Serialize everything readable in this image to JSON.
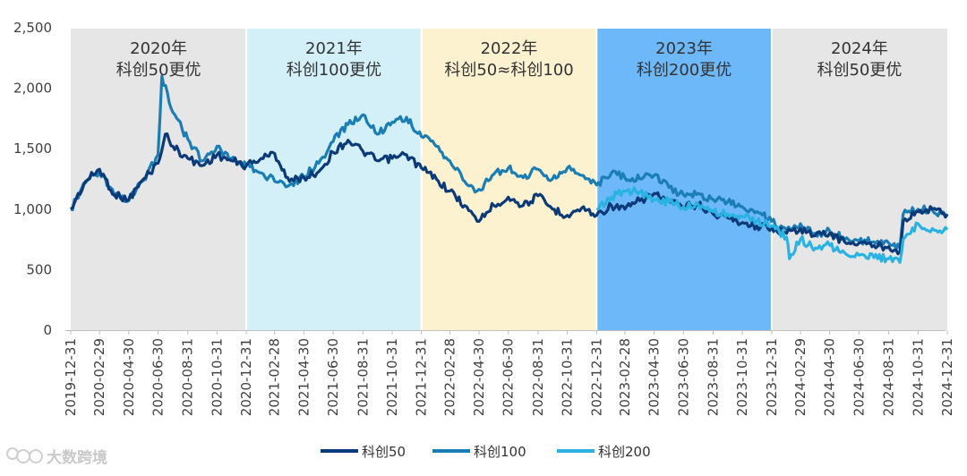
{
  "chart_data": {
    "type": "line",
    "title": "",
    "xlabel": "",
    "ylabel": "",
    "ylim": [
      0,
      2500
    ],
    "yticks": [
      0,
      500,
      1000,
      1500,
      2000,
      2500
    ],
    "ytick_labels": [
      "0",
      "500",
      "1,000",
      "1,500",
      "2,000",
      "2,500"
    ],
    "xtick_labels": [
      "2019-12-31",
      "2020-02-29",
      "2020-04-30",
      "2020-06-30",
      "2020-08-31",
      "2020-10-31",
      "2020-12-31",
      "2021-02-28",
      "2021-04-30",
      "2021-06-30",
      "2021-08-31",
      "2021-10-31",
      "2021-12-31",
      "2022-02-28",
      "2022-04-30",
      "2022-06-30",
      "2022-08-31",
      "2022-10-31",
      "2022-12-31",
      "2023-02-28",
      "2023-04-30",
      "2023-06-30",
      "2023-08-31",
      "2023-10-31",
      "2023-12-31",
      "2024-02-29",
      "2024-04-30",
      "2024-06-30",
      "2024-08-31",
      "2024-10-31",
      "2024-12-31"
    ],
    "grid": false,
    "legend_position": "bottom",
    "bands": [
      {
        "line1": "2020年",
        "line2": "科创50更优",
        "start": "2019-12-31",
        "end": "2020-12-31",
        "color": "#e6e6e6"
      },
      {
        "line1": "2021年",
        "line2": "科创100更优",
        "start": "2020-12-31",
        "end": "2021-12-31",
        "color": "#d3eff8"
      },
      {
        "line1": "2022年",
        "line2": "科创50≈科创100",
        "start": "2021-12-31",
        "end": "2022-12-31",
        "color": "#fdf2d0"
      },
      {
        "line1": "2023年",
        "line2": "科创200更优",
        "start": "2022-12-31",
        "end": "2023-12-31",
        "color": "#6cb8f8"
      },
      {
        "line1": "2024年",
        "line2": "科创50更优",
        "start": "2023-12-31",
        "end": "2024-12-31",
        "color": "#e6e6e6"
      }
    ],
    "series": [
      {
        "name": "科创50",
        "color": "#0b3a78",
        "x": [
          "2019-12-31",
          "2020-01-31",
          "2020-02-29",
          "2020-03-31",
          "2020-04-30",
          "2020-05-31",
          "2020-06-30",
          "2020-07-15",
          "2020-07-31",
          "2020-08-31",
          "2020-09-30",
          "2020-10-31",
          "2020-11-30",
          "2020-12-31",
          "2021-01-31",
          "2021-02-28",
          "2021-03-31",
          "2021-04-30",
          "2021-05-31",
          "2021-06-30",
          "2021-07-31",
          "2021-08-31",
          "2021-09-30",
          "2021-10-31",
          "2021-11-30",
          "2021-12-31",
          "2022-01-31",
          "2022-02-28",
          "2022-03-31",
          "2022-04-26",
          "2022-05-31",
          "2022-06-30",
          "2022-07-31",
          "2022-08-31",
          "2022-09-30",
          "2022-10-31",
          "2022-11-30",
          "2022-12-31",
          "2023-01-31",
          "2023-02-28",
          "2023-03-31",
          "2023-04-30",
          "2023-05-31",
          "2023-06-30",
          "2023-07-31",
          "2023-08-31",
          "2023-09-30",
          "2023-10-31",
          "2023-11-30",
          "2023-12-31",
          "2024-01-31",
          "2024-02-29",
          "2024-03-31",
          "2024-04-30",
          "2024-05-31",
          "2024-06-30",
          "2024-07-31",
          "2024-08-31",
          "2024-09-23",
          "2024-09-30",
          "2024-10-31",
          "2024-11-30",
          "2024-12-31"
        ],
        "values": [
          1000,
          1230,
          1330,
          1120,
          1080,
          1250,
          1380,
          1620,
          1520,
          1420,
          1360,
          1450,
          1400,
          1360,
          1420,
          1460,
          1230,
          1260,
          1310,
          1470,
          1570,
          1480,
          1400,
          1420,
          1450,
          1340,
          1250,
          1150,
          1030,
          900,
          1030,
          1100,
          1030,
          1110,
          1000,
          950,
          1010,
          950,
          1030,
          1000,
          1070,
          1130,
          1060,
          1020,
          1040,
          960,
          930,
          890,
          860,
          850,
          800,
          840,
          780,
          800,
          730,
          720,
          700,
          690,
          650,
          900,
          980,
          1000,
          960
        ]
      },
      {
        "name": "科创100",
        "color": "#1a7db4",
        "x": [
          "2019-12-31",
          "2020-01-31",
          "2020-02-29",
          "2020-03-31",
          "2020-04-30",
          "2020-05-31",
          "2020-06-30",
          "2020-07-08",
          "2020-07-31",
          "2020-08-31",
          "2020-09-30",
          "2020-10-31",
          "2020-11-30",
          "2020-12-31",
          "2021-01-31",
          "2021-02-28",
          "2021-03-31",
          "2021-04-30",
          "2021-05-31",
          "2021-06-30",
          "2021-07-31",
          "2021-08-31",
          "2021-09-30",
          "2021-10-31",
          "2021-11-30",
          "2021-12-31",
          "2022-01-31",
          "2022-02-28",
          "2022-03-31",
          "2022-04-26",
          "2022-05-31",
          "2022-06-30",
          "2022-07-31",
          "2022-08-31",
          "2022-09-30",
          "2022-10-31",
          "2022-11-30",
          "2022-12-31",
          "2023-01-31",
          "2023-02-28",
          "2023-03-31",
          "2023-04-30",
          "2023-05-31",
          "2023-06-30",
          "2023-07-31",
          "2023-08-31",
          "2023-09-30",
          "2023-10-31",
          "2023-11-30",
          "2023-12-31",
          "2024-01-31",
          "2024-02-29",
          "2024-03-31",
          "2024-04-30",
          "2024-05-31",
          "2024-06-30",
          "2024-07-31",
          "2024-08-31",
          "2024-09-23",
          "2024-09-30",
          "2024-10-31",
          "2024-11-30",
          "2024-12-31"
        ],
        "values": [
          1000,
          1220,
          1310,
          1110,
          1070,
          1240,
          1450,
          2100,
          1800,
          1580,
          1400,
          1520,
          1420,
          1360,
          1300,
          1230,
          1200,
          1270,
          1380,
          1560,
          1700,
          1780,
          1620,
          1720,
          1760,
          1600,
          1520,
          1400,
          1230,
          1150,
          1290,
          1340,
          1260,
          1330,
          1250,
          1340,
          1280,
          1200,
          1300,
          1260,
          1250,
          1280,
          1180,
          1120,
          1130,
          1080,
          1060,
          1020,
          980,
          900,
          830,
          880,
          800,
          820,
          750,
          740,
          730,
          720,
          680,
          960,
          1000,
          990,
          950
        ]
      },
      {
        "name": "科创200",
        "color": "#29b3e3",
        "x": [
          "2022-12-31",
          "2023-01-31",
          "2023-02-28",
          "2023-03-31",
          "2023-04-30",
          "2023-05-31",
          "2023-06-30",
          "2023-07-31",
          "2023-08-31",
          "2023-09-30",
          "2023-10-31",
          "2023-11-30",
          "2023-12-31",
          "2024-01-31",
          "2024-02-06",
          "2024-02-29",
          "2024-03-31",
          "2024-04-30",
          "2024-05-31",
          "2024-06-30",
          "2024-07-31",
          "2024-08-31",
          "2024-09-23",
          "2024-09-30",
          "2024-10-31",
          "2024-11-30",
          "2024-12-31"
        ],
        "values": [
          1000,
          1100,
          1150,
          1140,
          1080,
          1060,
          1020,
          1040,
          980,
          960,
          940,
          900,
          860,
          770,
          590,
          750,
          680,
          700,
          640,
          620,
          600,
          590,
          560,
          750,
          880,
          840,
          830
        ]
      }
    ]
  },
  "watermark": "大数跨境"
}
